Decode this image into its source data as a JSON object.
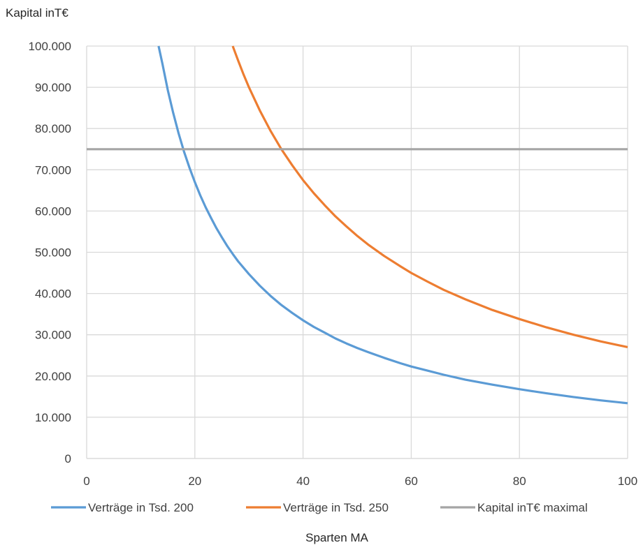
{
  "chart_data": {
    "type": "line",
    "title": "",
    "ylabel": "Kapital inT€",
    "xlabel": "Sparten MA",
    "xlim": [
      0,
      100
    ],
    "ylim": [
      0,
      100000
    ],
    "x_ticks": [
      0,
      20,
      40,
      60,
      80,
      100
    ],
    "x_tick_labels": [
      "0",
      "20",
      "40",
      "60",
      "80",
      "100"
    ],
    "y_ticks": [
      0,
      10000,
      20000,
      30000,
      40000,
      50000,
      60000,
      70000,
      80000,
      90000,
      100000
    ],
    "y_tick_labels": [
      "0",
      "10.000",
      "20.000",
      "30.000",
      "40.000",
      "50.000",
      "60.000",
      "70.000",
      "80.000",
      "90.000",
      "100.000"
    ],
    "grid": true,
    "legend_position": "bottom",
    "x": [
      13.3,
      14,
      15,
      16,
      17,
      18,
      19,
      20,
      21,
      22,
      23,
      24,
      25,
      26,
      27,
      28,
      30,
      32,
      34,
      36,
      38,
      40,
      42,
      44,
      46,
      48,
      50,
      52,
      55,
      58,
      60,
      63,
      66,
      70,
      75,
      80,
      85,
      90,
      95,
      100
    ],
    "series": [
      {
        "name": "Verträge in Tsd. 200",
        "color": "#5B9BD5",
        "values": [
          100000,
          95700,
          89300,
          83800,
          78800,
          74400,
          70500,
          67000,
          63800,
          60900,
          58300,
          55800,
          53600,
          51500,
          49600,
          47800,
          44700,
          41900,
          39400,
          37200,
          35300,
          33500,
          31900,
          30500,
          29100,
          27900,
          26800,
          25800,
          24400,
          23100,
          22300,
          21300,
          20300,
          19100,
          17900,
          16800,
          15800,
          14900,
          14100,
          13400
        ]
      },
      {
        "name": "Verträge in Tsd. 250",
        "color": "#ED7D31",
        "x": [
          27,
          28,
          29,
          30,
          32,
          34,
          36,
          38,
          40,
          42,
          44,
          46,
          48,
          50,
          52,
          55,
          58,
          60,
          63,
          66,
          70,
          75,
          80,
          85,
          90,
          95,
          100
        ],
        "values": [
          100000,
          96500,
          93100,
          90000,
          84400,
          79400,
          75000,
          71100,
          67500,
          64300,
          61400,
          58700,
          56300,
          54000,
          51900,
          49100,
          46600,
          45000,
          42900,
          40900,
          38600,
          36000,
          33800,
          31800,
          30000,
          28400,
          27000
        ]
      },
      {
        "name": "Kapital inT€ maximal",
        "color": "#A5A5A5",
        "x": [
          0,
          100
        ],
        "values": [
          75000,
          75000
        ]
      }
    ]
  }
}
